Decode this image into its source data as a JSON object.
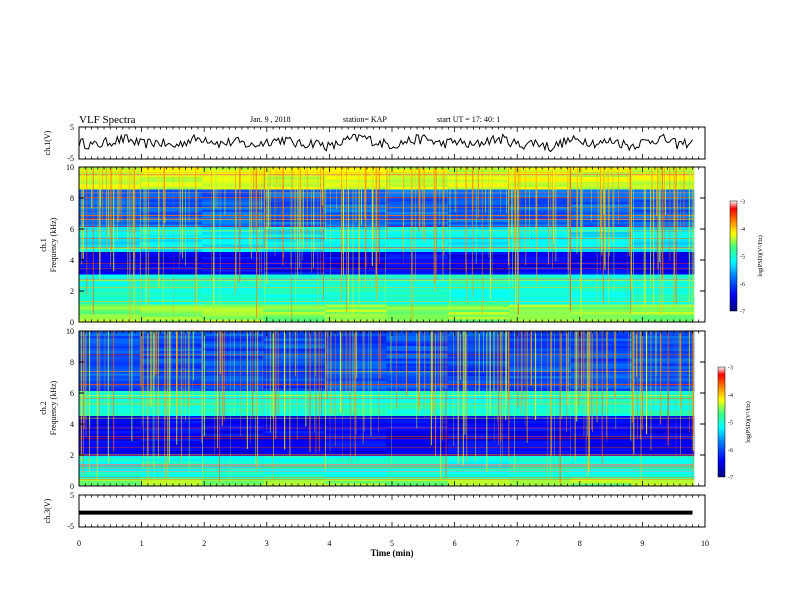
{
  "header": {
    "title": "VLF Spectra",
    "date": "Jan. 9 , 2018",
    "station": "station= KAP",
    "start": "start UT = 17: 40: 1"
  },
  "chart_data": [
    {
      "type": "line",
      "id": "ch1-waveform",
      "ylabel": "ch.1(V)",
      "ylim": [
        -5,
        5
      ],
      "y_ticks": [
        "5",
        "-5"
      ],
      "xlim": [
        0,
        9.8
      ],
      "description_values_estimated": true,
      "values": [
        0.2,
        -0.8,
        0.5,
        1.2,
        -0.4,
        0.3,
        -1.1,
        0.9,
        1.6,
        -0.2,
        0.4,
        -0.9,
        0.6,
        1.1,
        -0.5,
        0.2,
        -1.3,
        0.8,
        1.9,
        0.1,
        -0.6,
        0.7,
        1.4,
        -0.3,
        0.5,
        -1.0,
        0.9,
        1.2,
        -0.7,
        0.3,
        -1.4,
        0.6,
        1.0,
        -0.2,
        0.8,
        -0.9,
        0.4,
        1.5,
        -0.4,
        0.2
      ]
    },
    {
      "type": "heatmap",
      "id": "ch1-spectrogram",
      "ylabel": "ch.1 Frequency (kHz)",
      "ylim": [
        0,
        10
      ],
      "y_ticks": [
        "0",
        "2",
        "4",
        "6",
        "8",
        "10"
      ],
      "xlim": [
        0,
        10
      ],
      "colorbar": {
        "label": "log(PSD)(V²/Hz)",
        "range": [
          -7,
          -3
        ],
        "ticks": [
          "-3",
          "-4",
          "-5",
          "-6",
          "-7"
        ]
      }
    },
    {
      "type": "heatmap",
      "id": "ch2-spectrogram",
      "ylabel": "ch.2 Frequency (kHz)",
      "ylim": [
        0,
        10
      ],
      "y_ticks": [
        "0",
        "2",
        "4",
        "6",
        "8",
        "10"
      ],
      "xlim": [
        0,
        10
      ],
      "colorbar": {
        "label": "log(PSD)(V²/Hz)",
        "range": [
          -7,
          -3
        ],
        "ticks": [
          "-3",
          "-4",
          "-5",
          "-6",
          "-7"
        ]
      }
    },
    {
      "type": "line",
      "id": "ch3-waveform",
      "ylabel": "ch.3(V)",
      "ylim": [
        -5,
        5
      ],
      "y_ticks": [
        "5",
        "-5"
      ],
      "xlim": [
        0,
        9.8
      ],
      "values": [
        -0.5,
        -0.5
      ]
    }
  ],
  "x_axis": {
    "label": "Time (min)",
    "ticks": [
      "0",
      "1",
      "2",
      "3",
      "4",
      "5",
      "6",
      "7",
      "8",
      "9",
      "10"
    ],
    "range": [
      0,
      10
    ]
  },
  "colors": {
    "ink": "#000000",
    "colormap": [
      "#000080",
      "#0000ff",
      "#0080ff",
      "#00ffff",
      "#40ff80",
      "#ffff00",
      "#ff8000",
      "#ff0000",
      "#ffffff"
    ]
  }
}
